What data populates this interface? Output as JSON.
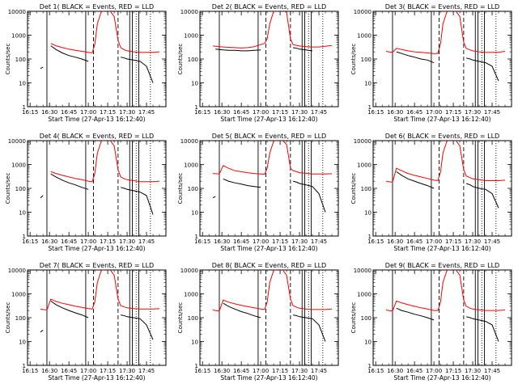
{
  "common": {
    "xlabel": "Start Time (27-Apr-13 16:12:40)",
    "ylabel": "Counts/sec",
    "x_ticks": [
      "16:15",
      "16:30",
      "16:45",
      "17:00",
      "17:15",
      "17:30",
      "17:45"
    ],
    "y_ticks": [
      "1",
      "10",
      "100",
      "1000",
      "10000"
    ],
    "ylim": [
      1,
      10000
    ],
    "yscale": "log",
    "colors": {
      "events": "#000000",
      "lld": "#ff0000"
    }
  },
  "chart_data": [
    {
      "type": "line",
      "title": "Det 1( BLACK = Events, RED = LLD",
      "x_minutes": [
        23,
        25,
        28,
        31,
        35,
        40,
        45,
        50,
        55,
        60,
        63,
        65,
        67,
        70,
        73,
        75,
        77,
        80,
        83,
        85,
        88,
        90,
        95,
        100,
        105,
        110,
        115
      ],
      "series": [
        {
          "name": "BLACK = Events",
          "values": [
            40,
            45,
            null,
            360,
            250,
            180,
            140,
            120,
            100,
            80,
            null,
            null,
            null,
            null,
            null,
            null,
            null,
            null,
            null,
            120,
            110,
            100,
            90,
            80,
            50,
            10,
            null
          ]
        },
        {
          "name": "RED = LLD",
          "values": [
            null,
            null,
            null,
            450,
            360,
            300,
            260,
            230,
            210,
            190,
            180,
            400,
            3000,
            9500,
            11000,
            11000,
            10000,
            6000,
            600,
            300,
            240,
            220,
            200,
            190,
            190,
            190,
            200
          ]
        }
      ],
      "solid_vlines": [
        28,
        58,
        92,
        94,
        99
      ],
      "dashed_vlines": [
        64,
        83
      ],
      "dotted_vlines": [
        97,
        108
      ]
    },
    {
      "type": "line",
      "title": "Det 2( BLACK = Events, RED = LLD",
      "x_minutes": [
        23,
        25,
        28,
        31,
        35,
        40,
        45,
        50,
        55,
        60,
        63,
        65,
        67,
        70,
        73,
        75,
        77,
        80,
        83,
        85,
        88,
        90,
        95,
        100,
        105,
        110,
        115
      ],
      "series": [
        {
          "name": "BLACK = Events",
          "values": [
            null,
            260,
            250,
            240,
            230,
            230,
            220,
            220,
            230,
            240,
            null,
            null,
            null,
            null,
            null,
            null,
            null,
            null,
            null,
            300,
            280,
            260,
            240,
            220,
            null,
            null,
            null
          ]
        },
        {
          "name": "RED = LLD",
          "values": [
            350,
            340,
            330,
            320,
            310,
            300,
            290,
            300,
            330,
            400,
            450,
            700,
            3000,
            10000,
            11000,
            11000,
            11000,
            9000,
            700,
            400,
            370,
            350,
            330,
            320,
            320,
            340,
            370
          ]
        }
      ],
      "solid_vlines": [
        28,
        58,
        92,
        94,
        99
      ],
      "dashed_vlines": [
        64,
        83
      ],
      "dotted_vlines": [
        97,
        108
      ]
    },
    {
      "type": "line",
      "title": "Det 3( BLACK = Events, RED = LLD",
      "x_minutes": [
        23,
        25,
        28,
        31,
        35,
        40,
        45,
        50,
        55,
        60,
        63,
        65,
        67,
        70,
        73,
        75,
        77,
        80,
        83,
        85,
        88,
        90,
        95,
        100,
        105,
        110,
        115
      ],
      "series": [
        {
          "name": "BLACK = Events",
          "values": [
            null,
            null,
            null,
            200,
            170,
            140,
            120,
            100,
            90,
            70,
            null,
            null,
            null,
            null,
            null,
            null,
            null,
            null,
            null,
            110,
            100,
            90,
            80,
            70,
            50,
            12,
            null
          ]
        },
        {
          "name": "RED = LLD",
          "values": [
            210,
            200,
            190,
            280,
            250,
            220,
            200,
            190,
            180,
            170,
            170,
            400,
            3000,
            9500,
            11000,
            11000,
            10000,
            6000,
            500,
            280,
            240,
            220,
            200,
            190,
            190,
            190,
            210
          ]
        }
      ],
      "solid_vlines": [
        28,
        58,
        92,
        94,
        99
      ],
      "dashed_vlines": [
        64,
        83
      ],
      "dotted_vlines": [
        97,
        108
      ]
    },
    {
      "type": "line",
      "title": "Det 4( BLACK = Events, RED = LLD",
      "x_minutes": [
        23,
        25,
        28,
        31,
        35,
        40,
        45,
        50,
        55,
        60,
        63,
        65,
        67,
        70,
        73,
        75,
        77,
        80,
        83,
        85,
        88,
        90,
        95,
        100,
        105,
        110,
        115
      ],
      "series": [
        {
          "name": "BLACK = Events",
          "values": [
            40,
            50,
            null,
            400,
            300,
            220,
            170,
            140,
            110,
            90,
            null,
            null,
            null,
            null,
            null,
            null,
            null,
            null,
            null,
            110,
            100,
            90,
            80,
            70,
            50,
            8,
            null
          ]
        },
        {
          "name": "RED = LLD",
          "values": [
            null,
            null,
            null,
            500,
            420,
            350,
            300,
            260,
            230,
            200,
            190,
            400,
            3000,
            9500,
            11000,
            11000,
            10000,
            6000,
            600,
            300,
            250,
            230,
            210,
            190,
            190,
            190,
            200
          ]
        }
      ],
      "solid_vlines": [
        28,
        58,
        92,
        94,
        99
      ],
      "dashed_vlines": [
        64,
        83
      ],
      "dotted_vlines": [
        97,
        108
      ]
    },
    {
      "type": "line",
      "title": "Det 5( BLACK = Events, RED = LLD",
      "x_minutes": [
        23,
        25,
        28,
        31,
        35,
        40,
        45,
        50,
        55,
        60,
        63,
        65,
        67,
        70,
        73,
        75,
        77,
        80,
        83,
        85,
        88,
        90,
        95,
        100,
        105,
        110,
        115
      ],
      "series": [
        {
          "name": "BLACK = Events",
          "values": [
            40,
            45,
            null,
            250,
            200,
            170,
            150,
            130,
            120,
            110,
            null,
            null,
            null,
            null,
            null,
            null,
            null,
            null,
            null,
            200,
            180,
            160,
            140,
            120,
            60,
            10,
            null
          ]
        },
        {
          "name": "RED = LLD",
          "values": [
            420,
            410,
            400,
            900,
            700,
            550,
            500,
            450,
            420,
            400,
            390,
            700,
            3000,
            9500,
            11000,
            11000,
            10000,
            7000,
            700,
            550,
            500,
            450,
            430,
            400,
            400,
            400,
            410
          ]
        }
      ],
      "solid_vlines": [
        28,
        58,
        92,
        94,
        99
      ],
      "dashed_vlines": [
        64,
        83
      ],
      "dotted_vlines": [
        97,
        108
      ]
    },
    {
      "type": "line",
      "title": "Det 6( BLACK = Events, RED = LLD",
      "x_minutes": [
        23,
        25,
        28,
        31,
        35,
        40,
        45,
        50,
        55,
        60,
        63,
        65,
        67,
        70,
        73,
        75,
        77,
        80,
        83,
        85,
        88,
        90,
        95,
        100,
        105,
        110,
        115
      ],
      "series": [
        {
          "name": "BLACK = Events",
          "values": [
            null,
            null,
            null,
            500,
            350,
            250,
            200,
            160,
            130,
            100,
            null,
            null,
            null,
            null,
            null,
            null,
            null,
            null,
            null,
            160,
            140,
            120,
            100,
            90,
            60,
            15,
            null
          ]
        },
        {
          "name": "RED = LLD",
          "values": [
            200,
            190,
            180,
            700,
            550,
            420,
            350,
            300,
            260,
            220,
            210,
            450,
            3000,
            9500,
            11000,
            11000,
            10000,
            6000,
            600,
            330,
            280,
            250,
            230,
            210,
            210,
            210,
            220
          ]
        }
      ],
      "solid_vlines": [
        28,
        58,
        92,
        94,
        99
      ],
      "dashed_vlines": [
        64,
        83
      ],
      "dotted_vlines": [
        97,
        108
      ]
    },
    {
      "type": "line",
      "title": "Det 7( BLACK = Events, RED = LLD",
      "x_minutes": [
        23,
        25,
        28,
        31,
        35,
        40,
        45,
        50,
        55,
        60,
        63,
        65,
        67,
        70,
        73,
        75,
        77,
        80,
        83,
        85,
        88,
        90,
        95,
        100,
        105,
        110,
        115
      ],
      "series": [
        {
          "name": "BLACK = Events",
          "values": [
            25,
            30,
            null,
            500,
            350,
            260,
            200,
            160,
            130,
            100,
            null,
            null,
            null,
            null,
            null,
            null,
            null,
            null,
            null,
            130,
            120,
            110,
            100,
            90,
            50,
            12,
            null
          ]
        },
        {
          "name": "RED = LLD",
          "values": [
            230,
            220,
            210,
            600,
            480,
            400,
            350,
            300,
            270,
            240,
            230,
            450,
            3000,
            9500,
            11000,
            11000,
            10000,
            6000,
            600,
            320,
            280,
            260,
            240,
            230,
            230,
            230,
            240
          ]
        }
      ],
      "solid_vlines": [
        28,
        58,
        92,
        94,
        99
      ],
      "dashed_vlines": [
        64,
        83
      ],
      "dotted_vlines": [
        97,
        108
      ]
    },
    {
      "type": "line",
      "title": "Det 8( BLACK = Events, RED = LLD",
      "x_minutes": [
        23,
        25,
        28,
        31,
        35,
        40,
        45,
        50,
        55,
        60,
        63,
        65,
        67,
        70,
        73,
        75,
        77,
        80,
        83,
        85,
        88,
        90,
        95,
        100,
        105,
        110,
        115
      ],
      "series": [
        {
          "name": "BLACK = Events",
          "values": [
            null,
            null,
            null,
            400,
            300,
            230,
            180,
            150,
            120,
            100,
            null,
            null,
            null,
            null,
            null,
            null,
            null,
            null,
            null,
            130,
            120,
            110,
            100,
            90,
            50,
            10,
            null
          ]
        },
        {
          "name": "RED = LLD",
          "values": [
            210,
            200,
            190,
            550,
            450,
            380,
            330,
            290,
            260,
            230,
            220,
            450,
            3000,
            9500,
            11000,
            11000,
            10000,
            6000,
            600,
            320,
            270,
            250,
            230,
            220,
            220,
            220,
            230
          ]
        }
      ],
      "solid_vlines": [
        28,
        58,
        92,
        94,
        99
      ],
      "dashed_vlines": [
        64,
        83
      ],
      "dotted_vlines": [
        97,
        108
      ]
    },
    {
      "type": "line",
      "title": "Det 9( BLACK = Events, RED = LLD",
      "x_minutes": [
        23,
        25,
        28,
        31,
        35,
        40,
        45,
        50,
        55,
        60,
        63,
        65,
        67,
        70,
        73,
        75,
        77,
        80,
        83,
        85,
        88,
        90,
        95,
        100,
        105,
        110,
        115
      ],
      "series": [
        {
          "name": "BLACK = Events",
          "values": [
            null,
            null,
            null,
            250,
            200,
            170,
            140,
            120,
            100,
            80,
            null,
            null,
            null,
            null,
            null,
            null,
            null,
            null,
            null,
            110,
            100,
            90,
            80,
            70,
            50,
            10,
            null
          ]
        },
        {
          "name": "RED = LLD",
          "values": [
            210,
            200,
            190,
            500,
            420,
            350,
            300,
            260,
            230,
            200,
            200,
            420,
            3000,
            9500,
            11000,
            11000,
            10000,
            6000,
            550,
            300,
            250,
            230,
            210,
            200,
            200,
            200,
            210
          ]
        }
      ],
      "solid_vlines": [
        28,
        58,
        92,
        94,
        99
      ],
      "dashed_vlines": [
        64,
        83
      ],
      "dotted_vlines": [
        97,
        108
      ]
    }
  ]
}
